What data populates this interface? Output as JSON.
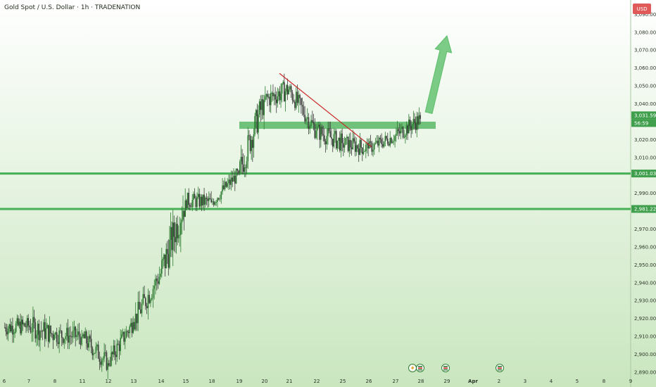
{
  "header": {
    "title": "Gold Spot / U.S. Dollar · 1h · TRADENATION"
  },
  "currency_badge": "USD",
  "colors": {
    "background_top": "#ffffff",
    "background_bottom": "#c9e6bf",
    "up_candle": "#2e7d32",
    "down_candle": "#3b3b3b",
    "level_line": "#45b054",
    "trendline": "#c62828",
    "arrow": "#5cbf6a",
    "label_bg": "#3f9f4c",
    "usd_badge": "#e05a5a"
  },
  "icons": [
    "lightning-icon",
    "flag-icon",
    "flag-icon",
    "flag-icon",
    "flag-icon"
  ],
  "chart_data": {
    "type": "candlestick",
    "instrument": "Gold Spot / U.S. Dollar",
    "timeframe": "1h",
    "x_ticks": [
      "6",
      "7",
      "8",
      "11",
      "12",
      "13",
      "14",
      "15",
      "18",
      "19",
      "20",
      "21",
      "22",
      "25",
      "26",
      "27",
      "28",
      "29",
      "Apr",
      "2",
      "3",
      "4",
      "5",
      "8",
      "9"
    ],
    "y_ticks": [
      "3,090.00",
      "3,080.00",
      "3,070.00",
      "3,060.00",
      "3,050.00",
      "3,040.00",
      "3,020.00",
      "3,010.00",
      "2,990.00",
      "2,970.00",
      "2,960.00",
      "2,950.00",
      "2,940.00",
      "2,930.00",
      "2,920.00",
      "2,910.00",
      "2,900.00",
      "2,890.00"
    ],
    "ylim": [
      2888,
      3098
    ],
    "price_labels": [
      {
        "text": "3,031.59",
        "value": 3031.59
      },
      {
        "text": "56:59",
        "value": 3031.59
      },
      {
        "text": "3,001.03",
        "value": 3001.03
      },
      {
        "text": "2,981.22",
        "value": 2981.22
      }
    ],
    "horizontal_levels": [
      3001.03,
      2981.22
    ],
    "resistance_zone": [
      3026,
      3030
    ],
    "downtrend_line": {
      "from": {
        "day": 20.6,
        "price": 3057
      },
      "to": {
        "day": 26.1,
        "price": 3016
      }
    },
    "projection_arrow": {
      "from": {
        "day": 28.3,
        "price": 3035
      },
      "to": {
        "day": 29.3,
        "price": 3078
      }
    },
    "daily_ohlc": [
      {
        "date": "6",
        "open": 2915,
        "high": 2925,
        "low": 2898,
        "close": 2916
      },
      {
        "date": "7",
        "open": 2916,
        "high": 2930,
        "low": 2895,
        "close": 2911
      },
      {
        "date": "8",
        "open": 2911,
        "high": 2928,
        "low": 2898,
        "close": 2910
      },
      {
        "date": "11",
        "open": 2910,
        "high": 2915,
        "low": 2885,
        "close": 2895
      },
      {
        "date": "12",
        "open": 2895,
        "high": 2922,
        "low": 2893,
        "close": 2918
      },
      {
        "date": "13",
        "open": 2918,
        "high": 2950,
        "low": 2913,
        "close": 2945
      },
      {
        "date": "14",
        "open": 2945,
        "high": 2995,
        "low": 2938,
        "close": 2986
      },
      {
        "date": "15",
        "open": 2986,
        "high": 3005,
        "low": 2980,
        "close": 2985
      },
      {
        "date": "18",
        "open": 2985,
        "high": 3004,
        "low": 2980,
        "close": 3001
      },
      {
        "date": "19",
        "open": 3001,
        "high": 3045,
        "low": 2999,
        "close": 3042
      },
      {
        "date": "20",
        "open": 3042,
        "high": 3057,
        "low": 3024,
        "close": 3048
      },
      {
        "date": "21",
        "open": 3048,
        "high": 3051,
        "low": 3020,
        "close": 3025
      },
      {
        "date": "22",
        "open": 3025,
        "high": 3030,
        "low": 3000,
        "close": 3018
      },
      {
        "date": "25",
        "open": 3018,
        "high": 3030,
        "low": 3003,
        "close": 3015
      },
      {
        "date": "26",
        "open": 3015,
        "high": 3032,
        "low": 3010,
        "close": 3022
      },
      {
        "date": "27",
        "open": 3022,
        "high": 3038,
        "low": 3012,
        "close": 3031.59
      }
    ]
  }
}
